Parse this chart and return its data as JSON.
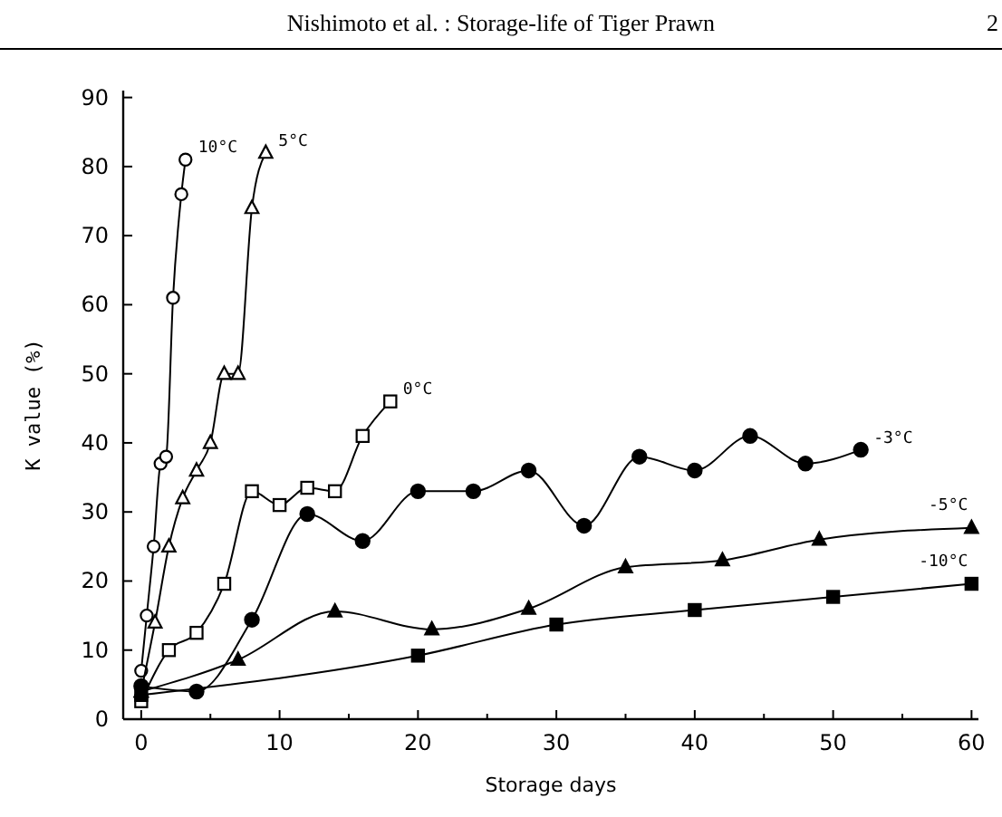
{
  "chart_data": {
    "type": "line",
    "title": "Nishimoto et al. : Storage-life of Tiger Prawn",
    "annotations": [
      "2"
    ],
    "xlabel": "Storage days",
    "ylabel": "K value (%)",
    "xlim": [
      -1.3,
      60.5
    ],
    "ylim": [
      0,
      91
    ],
    "xticks": [
      0,
      {
        "value": 5,
        "label": null
      },
      10,
      {
        "value": 15,
        "label": null
      },
      20,
      {
        "value": 25,
        "label": null
      },
      30,
      {
        "value": 35,
        "label": null
      },
      40,
      {
        "value": 45,
        "label": null
      },
      50,
      {
        "value": 55,
        "label": null
      },
      60
    ],
    "yticks": [
      0,
      10,
      20,
      30,
      40,
      50,
      60,
      70,
      80,
      90
    ],
    "grid": false,
    "line_style": "solid",
    "series": [
      {
        "name": "10°C",
        "color": "#000000",
        "marker": "circle",
        "colors": [
          "#ffffff",
          "#ffffff",
          "#ffffff",
          "#ffffff",
          "#ffffff",
          "#ffffff",
          "#ffffff",
          "#ffffff"
        ],
        "x": [
          0,
          0.4,
          0.9,
          1.4,
          1.8,
          2.3,
          2.9,
          3.2
        ],
        "values": [
          7,
          15,
          25,
          37,
          38,
          61,
          76,
          81
        ]
      },
      {
        "name": "5°C",
        "color": "#000000",
        "marker": "triangle",
        "colors": [
          "#ffffff",
          "#ffffff",
          "#ffffff",
          "#ffffff",
          "#ffffff",
          "#ffffff",
          "#ffffff",
          "#ffffff",
          "#ffffff",
          "#ffffff"
        ],
        "x": [
          0,
          1,
          2,
          3,
          4,
          5,
          6,
          7,
          8,
          9
        ],
        "values": [
          4,
          14,
          25,
          32,
          36,
          40,
          50,
          50,
          74,
          82
        ]
      },
      {
        "name": "0°C",
        "color": "#000000",
        "marker": "square",
        "colors": [
          "#ffffff",
          "#ffffff",
          "#ffffff",
          "#ffffff",
          "#ffffff",
          "#ffffff",
          "#ffffff",
          "#ffffff",
          "#ffffff",
          "#ffffff"
        ],
        "x": [
          0,
          2,
          4,
          6,
          8,
          10,
          12,
          14,
          16,
          18
        ],
        "values": [
          2.6,
          10,
          12.5,
          19.6,
          33,
          31,
          33.5,
          33,
          41,
          46
        ]
      },
      {
        "name": "-3°C",
        "color": "#000000",
        "marker": "circle",
        "x": [
          0,
          4,
          8,
          12,
          16,
          20,
          24,
          28,
          32,
          36,
          40,
          44,
          48,
          52
        ],
        "values": [
          4.8,
          4,
          14.4,
          29.7,
          25.8,
          33,
          33,
          36,
          28,
          38,
          36,
          41,
          37,
          39
        ]
      },
      {
        "name": "-5°C",
        "color": "#000000",
        "marker": "triangle",
        "x": [
          0,
          7,
          14,
          21,
          28,
          35,
          42,
          49,
          60
        ],
        "values": [
          4,
          8.6,
          15.6,
          13,
          16,
          22,
          23,
          26,
          27.7
        ]
      },
      {
        "name": "-10°C",
        "color": "#000000",
        "marker": "square",
        "x": [
          0,
          20,
          30,
          40,
          50,
          60
        ],
        "values": [
          3.5,
          9.2,
          13.7,
          15.8,
          17.7,
          19.6
        ]
      }
    ]
  }
}
